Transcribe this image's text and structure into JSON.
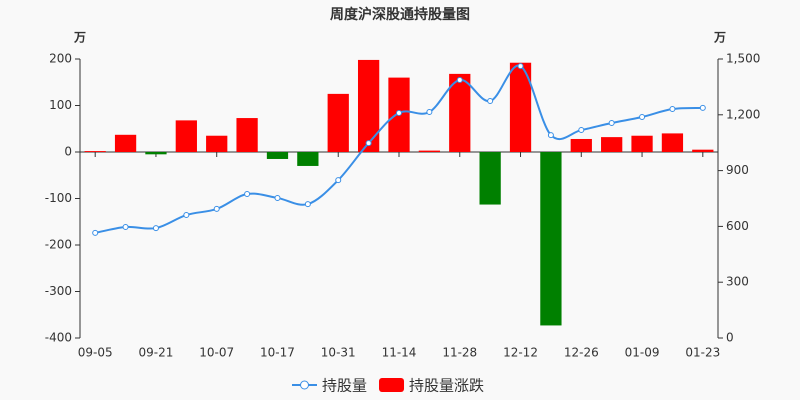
{
  "chart_data": {
    "type": "bar",
    "title": "周度沪深股通持股量图",
    "y_unit": "万",
    "y2_unit": "万",
    "categories": [
      "09-05",
      null,
      "09-21",
      null,
      "10-07",
      null,
      "10-17",
      null,
      "10-31",
      null,
      "11-14",
      null,
      "11-28",
      null,
      "12-12",
      null,
      "12-26",
      null,
      "01-09",
      null,
      "01-23"
    ],
    "series": [
      {
        "name": "持股量",
        "type": "line",
        "axis": "y2",
        "color": "#3a8fe6",
        "values": [
          565,
          597,
          591,
          661,
          694,
          774,
          753,
          720,
          849,
          1048,
          1210,
          1215,
          1387,
          1274,
          1462,
          1091,
          1118,
          1156,
          1188,
          1231,
          1237
        ]
      },
      {
        "name": "持股量涨跌",
        "type": "bar",
        "color": "#ff0000",
        "negative_color": "#008000",
        "values": [
          2,
          37,
          -5,
          68,
          35,
          73,
          -15,
          -30,
          125,
          198,
          160,
          3,
          168,
          -113,
          192,
          -373,
          28,
          32,
          35,
          40,
          5
        ]
      }
    ],
    "ylim": [
      -400,
      200
    ],
    "yticks": [
      -400,
      -300,
      -200,
      -100,
      0,
      100,
      200
    ],
    "y2lim": [
      0,
      1500
    ],
    "y2ticks": [
      0,
      300,
      600,
      900,
      {
        "value": 1200,
        "label": "1,200"
      },
      {
        "value": 1500,
        "label": "1,500"
      }
    ],
    "grid": false
  }
}
